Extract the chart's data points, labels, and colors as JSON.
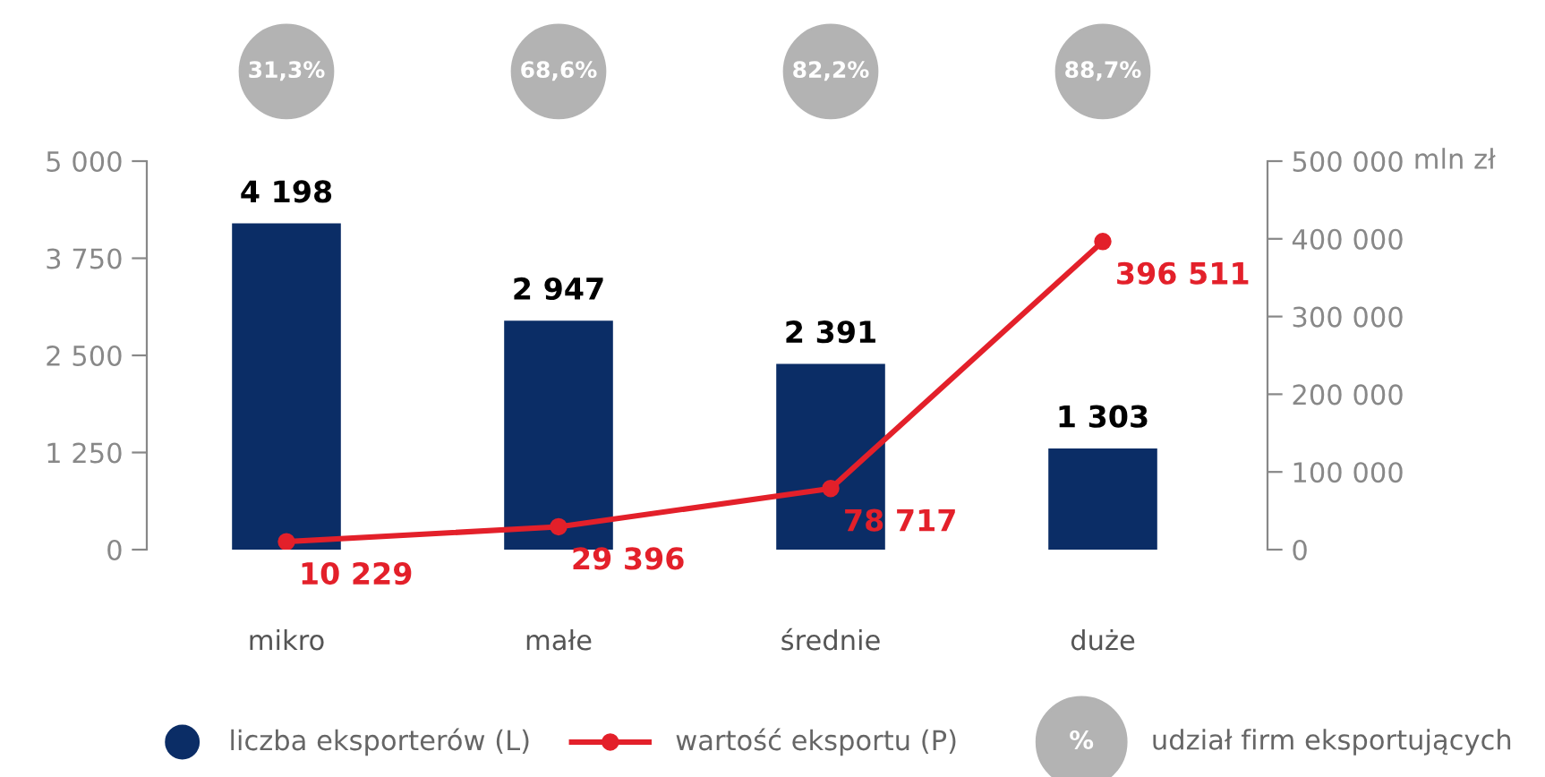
{
  "chart_data": {
    "type": "bar",
    "categories": [
      "mikro",
      "małe",
      "średnie",
      "duże"
    ],
    "series": [
      {
        "name": "liczba eksporterów (L)",
        "color": "#0b2d66",
        "values": [
          4198,
          2947,
          2391,
          1303
        ],
        "value_labels": [
          "4 198",
          "2 947",
          "2 391",
          "1 303"
        ]
      },
      {
        "name": "wartość eksportu (P)",
        "type": "line",
        "axis": "y2",
        "color": "#e3202a",
        "values": [
          10229,
          29396,
          78717,
          396511
        ],
        "value_labels": [
          "10 229",
          "29 396",
          "78 717",
          "396 511"
        ]
      }
    ],
    "ylim": [
      0,
      5000
    ],
    "yticks": [
      {
        "value": 0,
        "label": "0"
      },
      {
        "value": 1250,
        "label": "1 250"
      },
      {
        "value": 2500,
        "label": "2 500"
      },
      {
        "value": 3750,
        "label": "3 750"
      },
      {
        "value": 5000,
        "label": "5 000"
      }
    ],
    "y2lim": [
      0,
      500000
    ],
    "y2ticks": [
      {
        "value": 0,
        "label": "0"
      },
      {
        "value": 100000,
        "label": "100 000"
      },
      {
        "value": 200000,
        "label": "200 000"
      },
      {
        "value": 300000,
        "label": "300 000"
      },
      {
        "value": 400000,
        "label": "400 000"
      },
      {
        "value": 500000,
        "label": "500 000"
      }
    ],
    "y2label": "mln zł",
    "annotations": [
      "31,3%",
      "68,6%",
      "82,2%",
      "88,7%",
      "%",
      "udział firm eksportujących"
    ],
    "marker": "circle",
    "grid": false,
    "legend": "bottom"
  }
}
